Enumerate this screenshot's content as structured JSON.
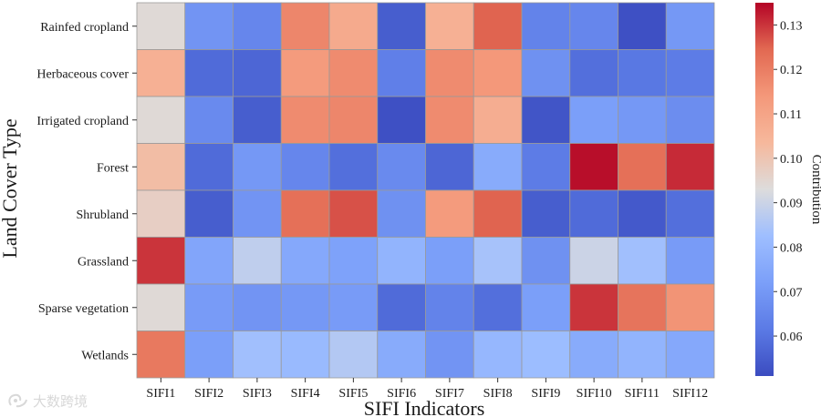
{
  "chart_data": {
    "type": "heatmap",
    "title": "",
    "xlabel": "SIFI Indicators",
    "ylabel": "Land Cover Type",
    "colorbar_label": "Contribution",
    "x_categories": [
      "SIFI1",
      "SIFI2",
      "SIFI3",
      "SIFI4",
      "SIFI5",
      "SIFI6",
      "SIFI7",
      "SIFI8",
      "SIFI9",
      "SIFI10",
      "SIFI11",
      "SIFI12"
    ],
    "y_categories": [
      "Rainfed cropland",
      "Herbaceous cover",
      "Irrigated cropland",
      "Forest",
      "Shrubland",
      "Grassland",
      "Sparse vegetation",
      "Wetlands"
    ],
    "values": [
      [
        0.094,
        0.069,
        0.065,
        0.118,
        0.108,
        0.055,
        0.106,
        0.125,
        0.064,
        0.065,
        0.052,
        0.07
      ],
      [
        0.106,
        0.058,
        0.057,
        0.113,
        0.117,
        0.063,
        0.117,
        0.114,
        0.068,
        0.059,
        0.061,
        0.062
      ],
      [
        0.094,
        0.066,
        0.055,
        0.117,
        0.118,
        0.052,
        0.117,
        0.107,
        0.053,
        0.072,
        0.07,
        0.067
      ],
      [
        0.102,
        0.058,
        0.07,
        0.065,
        0.059,
        0.066,
        0.057,
        0.076,
        0.062,
        0.134,
        0.123,
        0.131
      ],
      [
        0.097,
        0.055,
        0.069,
        0.123,
        0.127,
        0.068,
        0.113,
        0.125,
        0.055,
        0.058,
        0.054,
        0.059
      ],
      [
        0.13,
        0.074,
        0.088,
        0.075,
        0.073,
        0.079,
        0.072,
        0.084,
        0.068,
        0.09,
        0.083,
        0.071
      ],
      [
        0.094,
        0.071,
        0.069,
        0.07,
        0.071,
        0.058,
        0.064,
        0.059,
        0.072,
        0.13,
        0.122,
        0.115
      ],
      [
        0.121,
        0.072,
        0.083,
        0.081,
        0.086,
        0.076,
        0.069,
        0.08,
        0.082,
        0.076,
        0.079,
        0.075
      ]
    ],
    "colorscale": "coolwarm",
    "vmin": 0.051,
    "vmax": 0.135,
    "colorbar_ticks": [
      "0.06",
      "0.07",
      "0.08",
      "0.09",
      "0.10",
      "0.11",
      "0.12",
      "0.13"
    ]
  },
  "watermark": {
    "text": "大数跨境",
    "icon": "watermark-logo-icon"
  }
}
